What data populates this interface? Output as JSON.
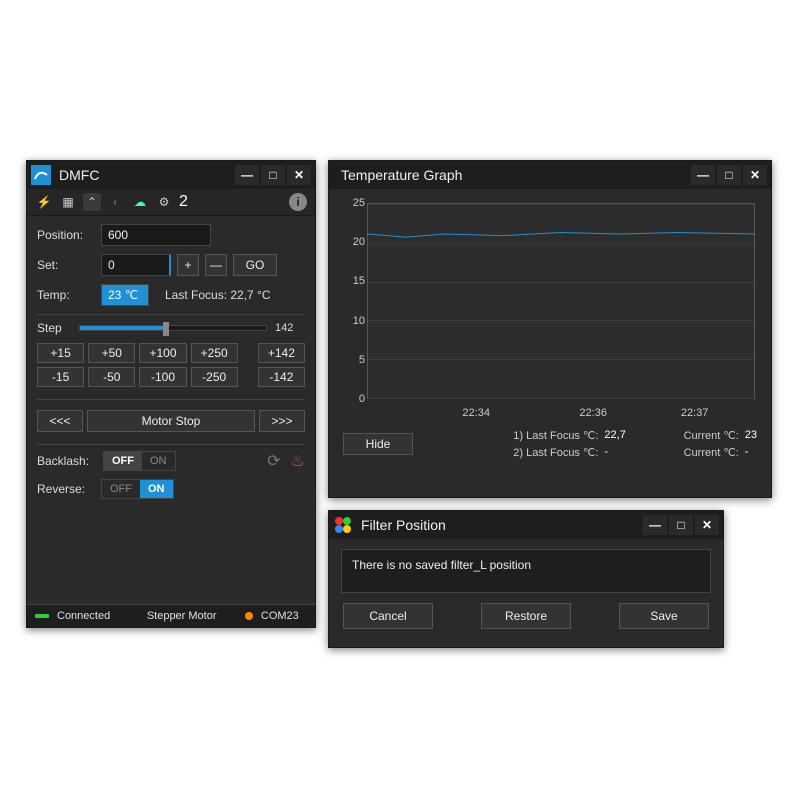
{
  "dmfc": {
    "title": "DMFC",
    "icon_color": "#1f8fd6",
    "toolbar_number": "2",
    "position_label": "Position:",
    "position_value": "600",
    "set_label": "Set:",
    "set_value": "0",
    "go_label": "GO",
    "temp_label": "Temp:",
    "temp_value": "23 ℃",
    "last_focus_label": "Last Focus: 22,7 °C",
    "step_label": "Step",
    "step_value": "142",
    "step_slider_pct": 46,
    "step_buttons_pos": [
      "+15",
      "+50",
      "+100",
      "+250"
    ],
    "step_buttons_neg": [
      "-15",
      "-50",
      "-100",
      "-250"
    ],
    "step_side_pos": "+142",
    "step_side_neg": "-142",
    "motor_prev": "<<<",
    "motor_stop": "Motor Stop",
    "motor_next": ">>>",
    "backlash_label": "Backlash:",
    "reverse_label": "Reverse:",
    "off": "OFF",
    "on": "ON",
    "backlash_state": "off",
    "reverse_state": "on",
    "status_connected": "Connected",
    "status_motor": "Stepper Motor",
    "status_port": "COM23"
  },
  "tempwin": {
    "title": "Temperature Graph",
    "ylim": [
      0,
      25
    ],
    "ytick_step": 5,
    "yticks": [
      0,
      5,
      10,
      15,
      20,
      25
    ],
    "xticks": [
      "22:34",
      "22:36",
      "22:37"
    ],
    "xtick_positions_pct": [
      28,
      58,
      84
    ],
    "line_color": "#1f8fd6",
    "background_color": "#2d2d2d",
    "grid_color": "#3a3a3a",
    "series": [
      {
        "x_pct": 0,
        "y": 23.0
      },
      {
        "x_pct": 10,
        "y": 22.8
      },
      {
        "x_pct": 20,
        "y": 23.0
      },
      {
        "x_pct": 35,
        "y": 22.9
      },
      {
        "x_pct": 50,
        "y": 23.1
      },
      {
        "x_pct": 65,
        "y": 23.0
      },
      {
        "x_pct": 80,
        "y": 23.1
      },
      {
        "x_pct": 100,
        "y": 23.0
      }
    ],
    "info1_label": "1) Last Focus ℃:",
    "info1_val": "22,7",
    "info1b_label": "Current  ℃:",
    "info1b_val": "23",
    "info2_label": "2) Last Focus ℃:",
    "info2_val": "-",
    "info2b_label": "Current  ℃:",
    "info2b_val": "-",
    "hide_label": "Hide"
  },
  "filterwin": {
    "title": "Filter Position",
    "message": "There is no saved filter_L position",
    "cancel": "Cancel",
    "restore": "Restore",
    "save": "Save",
    "icon_colors": [
      "#e33",
      "#3c3",
      "#38f",
      "#fc0"
    ]
  }
}
